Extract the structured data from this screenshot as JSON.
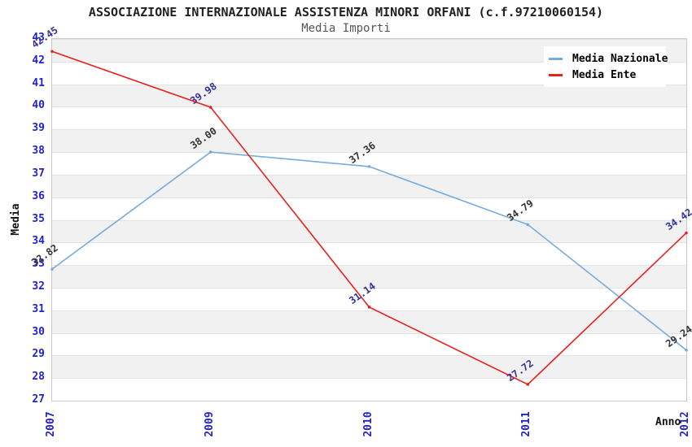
{
  "header": {
    "title": "ASSOCIAZIONE INTERNAZIONALE ASSISTENZA MINORI ORFANI (c.f.97210060154)",
    "subtitle": "Media Importi"
  },
  "chart_data": {
    "type": "line",
    "title": "ASSOCIAZIONE INTERNAZIONALE ASSISTENZA MINORI ORFANI (c.f.97210060154)",
    "subtitle": "Media Importi",
    "xlabel": "Anno",
    "ylabel": "Media",
    "categories": [
      "2007",
      "2009",
      "2010",
      "2011",
      "2012"
    ],
    "series": [
      {
        "name": "Media Nazionale",
        "color": "#74ACDE",
        "label_color": "#333333",
        "values": [
          32.82,
          38.0,
          37.36,
          34.79,
          29.24
        ]
      },
      {
        "name": "Media Ente",
        "color": "#E8221B",
        "label_color": "#333399",
        "values": [
          42.45,
          39.98,
          31.14,
          27.72,
          34.42
        ]
      }
    ],
    "ylim": [
      27,
      43
    ],
    "ytick_step": 1,
    "grid": "horizontal-bands",
    "legend_position": "top-right",
    "value_decimals": 2,
    "colors": {
      "tick_label": "#2222CC",
      "band_gray": "#F1F1F1",
      "band_white": "#FFFFFF",
      "grid_line": "#E3E3E3",
      "axis_border": "#C9C9C9",
      "title": "#222222",
      "subtitle": "#555555",
      "axis_title": "#111111",
      "legend_bg": "#FFFFFF",
      "legend_text": "#000000"
    }
  }
}
